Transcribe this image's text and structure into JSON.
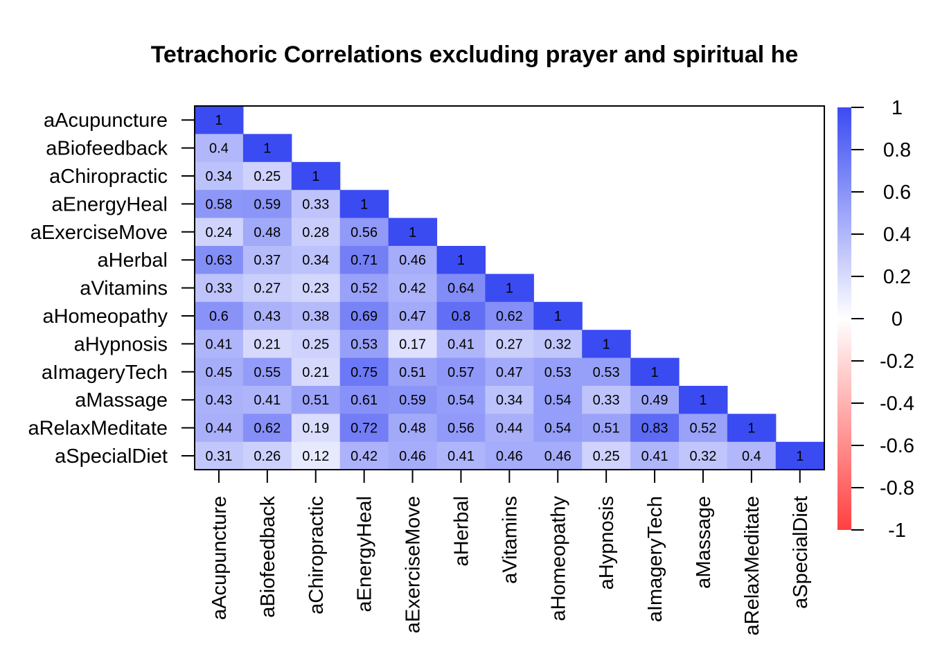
{
  "chart_data": {
    "type": "heatmap",
    "title": "Tetrachoric Correlations excluding prayer and spiritual he",
    "variables": [
      "aAcupuncture",
      "aBiofeedback",
      "aChiropractic",
      "aEnergyHeal",
      "aExerciseMove",
      "aHerbal",
      "aVitamins",
      "aHomeopathy",
      "aHypnosis",
      "aImageryTech",
      "aMassage",
      "aRelaxMeditate",
      "aSpecialDiet"
    ],
    "matrix_lower": [
      [
        1
      ],
      [
        0.4,
        1
      ],
      [
        0.34,
        0.25,
        1
      ],
      [
        0.58,
        0.59,
        0.33,
        1
      ],
      [
        0.24,
        0.48,
        0.28,
        0.56,
        1
      ],
      [
        0.63,
        0.37,
        0.34,
        0.71,
        0.46,
        1
      ],
      [
        0.33,
        0.27,
        0.23,
        0.52,
        0.42,
        0.64,
        1
      ],
      [
        0.6,
        0.43,
        0.38,
        0.69,
        0.47,
        0.8,
        0.62,
        1
      ],
      [
        0.41,
        0.21,
        0.25,
        0.53,
        0.17,
        0.41,
        0.27,
        0.32,
        1
      ],
      [
        0.45,
        0.55,
        0.21,
        0.75,
        0.51,
        0.57,
        0.47,
        0.53,
        0.53,
        1
      ],
      [
        0.43,
        0.41,
        0.51,
        0.61,
        0.59,
        0.54,
        0.34,
        0.54,
        0.33,
        0.49,
        1
      ],
      [
        0.44,
        0.62,
        0.19,
        0.72,
        0.48,
        0.56,
        0.44,
        0.54,
        0.51,
        0.83,
        0.52,
        1
      ],
      [
        0.31,
        0.26,
        0.12,
        0.42,
        0.46,
        0.41,
        0.46,
        0.46,
        0.25,
        0.41,
        0.32,
        0.4,
        1
      ]
    ],
    "color_scale": {
      "range": [
        -1,
        1
      ],
      "ticks": [
        1,
        0.8,
        0.6,
        0.4,
        0.2,
        0,
        -0.2,
        -0.4,
        -0.6,
        -0.8,
        -1
      ],
      "tick_labels": [
        "1",
        "0.8",
        "0.6",
        "0.4",
        "0.2",
        "0",
        "-0.2",
        "-0.4",
        "-0.6",
        "-0.8",
        "-1"
      ],
      "low_color": "#FF4040",
      "mid_color": "#FFFFFF",
      "high_color": "#3B4BF2"
    },
    "legend_placement": "right",
    "grid": false
  }
}
